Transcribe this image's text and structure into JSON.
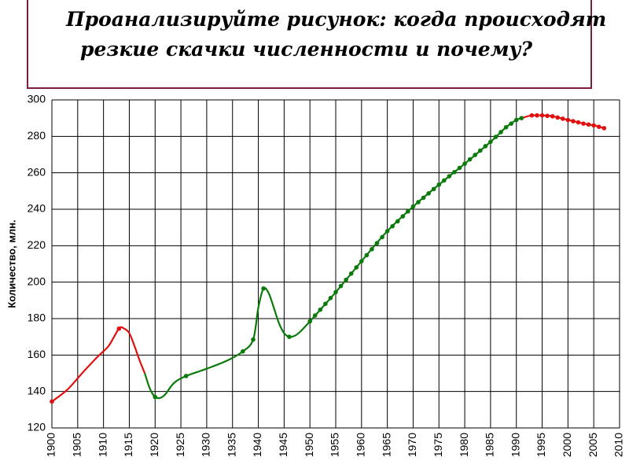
{
  "slide": {
    "title_line1": "Проанализируйте рисунок: когда происходят",
    "title_line2": "резкие скачки численности и почему?"
  },
  "chart_data": {
    "type": "line",
    "title": "",
    "xlabel": "",
    "ylabel": "Количество, млн.",
    "xlim": [
      1900,
      2010
    ],
    "ylim": [
      120,
      300
    ],
    "x_ticks": [
      1900,
      1905,
      1910,
      1915,
      1920,
      1925,
      1930,
      1935,
      1940,
      1945,
      1950,
      1955,
      1960,
      1965,
      1970,
      1975,
      1980,
      1985,
      1990,
      1995,
      2000,
      2005,
      2010
    ],
    "y_ticks": [
      120,
      140,
      160,
      180,
      200,
      220,
      240,
      260,
      280,
      300
    ],
    "grid": true,
    "colors": {
      "growth": "#0a7a0a",
      "decline": "#e01010",
      "grid": "#000000"
    },
    "series": [
      {
        "color": "decline",
        "points": [
          [
            1900,
            134.5
          ],
          [
            1903,
            141
          ],
          [
            1906,
            150.5
          ],
          [
            1909,
            159.5
          ],
          [
            1911,
            165
          ],
          [
            1913,
            174.5
          ],
          [
            1914,
            174.5
          ],
          [
            1915,
            172
          ],
          [
            1916,
            165
          ],
          [
            1917,
            157
          ],
          [
            1918,
            150
          ]
        ]
      },
      {
        "color": "growth",
        "points": [
          [
            1918,
            150
          ],
          [
            1919,
            141.5
          ],
          [
            1920,
            137
          ],
          [
            1921,
            136.5
          ],
          [
            1922,
            138.5
          ],
          [
            1923,
            142.5
          ],
          [
            1924,
            145.5
          ],
          [
            1926,
            148.5
          ],
          [
            1930,
            152.5
          ],
          [
            1934,
            157
          ],
          [
            1937,
            162
          ],
          [
            1939,
            168.5
          ],
          [
            1940,
            186
          ],
          [
            1941,
            196.5
          ],
          [
            1942,
            194
          ],
          [
            1943,
            186
          ],
          [
            1944,
            177.5
          ],
          [
            1945,
            172
          ],
          [
            1946,
            170
          ],
          [
            1947,
            170.5
          ],
          [
            1948,
            172.5
          ],
          [
            1950,
            178.5
          ],
          [
            1955,
            194.5
          ],
          [
            1960,
            211.5
          ],
          [
            1965,
            228
          ],
          [
            1970,
            241.5
          ],
          [
            1975,
            253.5
          ],
          [
            1980,
            265
          ],
          [
            1985,
            277
          ],
          [
            1988,
            285
          ],
          [
            1990,
            289
          ],
          [
            1991,
            290
          ]
        ]
      },
      {
        "color": "decline",
        "points": [
          [
            1991,
            290
          ],
          [
            1993,
            291.5
          ],
          [
            1995,
            291.5
          ],
          [
            1997,
            291
          ],
          [
            2000,
            289
          ],
          [
            2003,
            287
          ],
          [
            2005,
            286
          ],
          [
            2007,
            284.5
          ]
        ]
      }
    ],
    "markers": [
      {
        "color": "decline",
        "x": [
          1900,
          1913,
          1993,
          1994,
          1995,
          1996,
          1997,
          1998,
          1999,
          2000,
          2001,
          2002,
          2003,
          2004,
          2005,
          2006,
          2007
        ]
      },
      {
        "color": "growth",
        "x": [
          1920,
          1926,
          1937,
          1939,
          1941,
          1946,
          1950,
          1951,
          1952,
          1953,
          1954,
          1955,
          1956,
          1957,
          1958,
          1959,
          1960,
          1961,
          1962,
          1963,
          1964,
          1965,
          1966,
          1967,
          1968,
          1969,
          1970,
          1971,
          1972,
          1973,
          1974,
          1975,
          1976,
          1977,
          1978,
          1979,
          1980,
          1981,
          1982,
          1983,
          1984,
          1985,
          1986,
          1987,
          1988,
          1989,
          1990,
          1991
        ]
      }
    ]
  }
}
